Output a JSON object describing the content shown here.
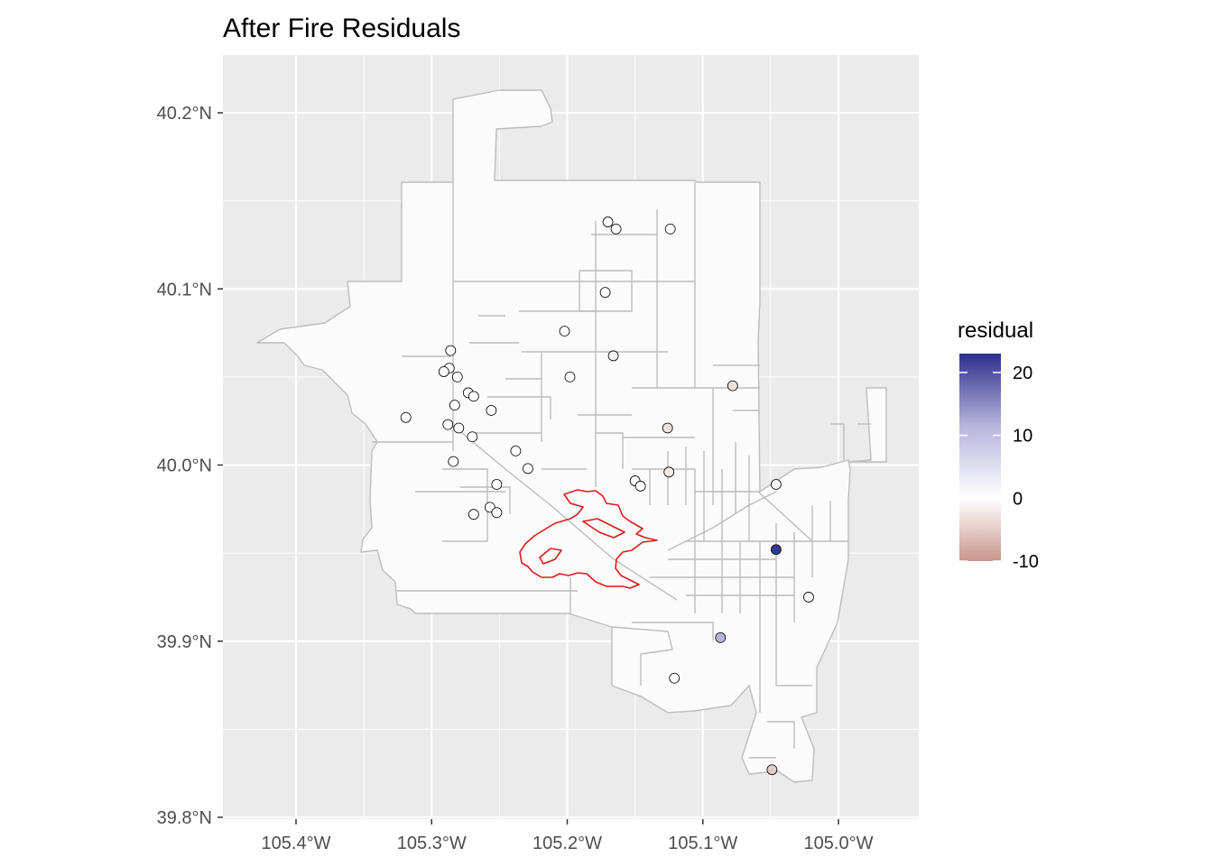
{
  "chart_data": {
    "type": "scatter",
    "title": "After Fire Residuals",
    "xlabel": "",
    "ylabel": "",
    "xlim": [
      -105.45,
      -104.94
    ],
    "ylim": [
      39.8,
      40.23
    ],
    "x_ticks": [
      {
        "value": -105.4,
        "label": "105.4°W"
      },
      {
        "value": -105.3,
        "label": "105.3°W"
      },
      {
        "value": -105.2,
        "label": "105.2°W"
      },
      {
        "value": -105.1,
        "label": "105.1°W"
      },
      {
        "value": -105.0,
        "label": "105.0°W"
      }
    ],
    "y_ticks": [
      {
        "value": 39.8,
        "label": "39.8°N"
      },
      {
        "value": 39.9,
        "label": "39.9°N"
      },
      {
        "value": 40.0,
        "label": "40.0°N"
      },
      {
        "value": 40.1,
        "label": "40.1°N"
      },
      {
        "value": 40.2,
        "label": "40.2°N"
      }
    ],
    "grid": true,
    "legend": {
      "title": "residual",
      "placement": "right",
      "range": [
        -10,
        23
      ],
      "ticks": [
        {
          "value": 20,
          "label": "20"
        },
        {
          "value": 10,
          "label": "10"
        },
        {
          "value": 0,
          "label": "0"
        },
        {
          "value": -10,
          "label": "-10"
        }
      ],
      "colors": {
        "low": "#c9958b",
        "mid": "#ffffff",
        "high": "#2d2f8c"
      }
    },
    "colors": {
      "panel_bg": "#ebebeb",
      "grid": "#ffffff",
      "region_fill": "#fbfbfb",
      "region_stroke": "#bdbdbd",
      "fire_perimeter": "#e0191a"
    },
    "points": [
      {
        "lon": -105.17,
        "lat": 40.138,
        "residual": 0
      },
      {
        "lon": -105.164,
        "lat": 40.134,
        "residual": 0
      },
      {
        "lon": -105.124,
        "lat": 40.134,
        "residual": 0
      },
      {
        "lon": -105.172,
        "lat": 40.098,
        "residual": 0
      },
      {
        "lon": -105.202,
        "lat": 40.076,
        "residual": 0
      },
      {
        "lon": -105.166,
        "lat": 40.062,
        "residual": -1
      },
      {
        "lon": -105.198,
        "lat": 40.05,
        "residual": 0
      },
      {
        "lon": -105.078,
        "lat": 40.045,
        "residual": -3
      },
      {
        "lon": -105.286,
        "lat": 40.065,
        "residual": 0
      },
      {
        "lon": -105.287,
        "lat": 40.055,
        "residual": 0
      },
      {
        "lon": -105.291,
        "lat": 40.053,
        "residual": 0
      },
      {
        "lon": -105.281,
        "lat": 40.05,
        "residual": 0
      },
      {
        "lon": -105.273,
        "lat": 40.041,
        "residual": 0
      },
      {
        "lon": -105.269,
        "lat": 40.039,
        "residual": 0
      },
      {
        "lon": -105.283,
        "lat": 40.034,
        "residual": 0
      },
      {
        "lon": -105.256,
        "lat": 40.031,
        "residual": 0
      },
      {
        "lon": -105.319,
        "lat": 40.027,
        "residual": 0
      },
      {
        "lon": -105.288,
        "lat": 40.023,
        "residual": 0
      },
      {
        "lon": -105.28,
        "lat": 40.021,
        "residual": 0
      },
      {
        "lon": -105.27,
        "lat": 40.016,
        "residual": 0
      },
      {
        "lon": -105.126,
        "lat": 40.021,
        "residual": -3
      },
      {
        "lon": -105.238,
        "lat": 40.008,
        "residual": 0
      },
      {
        "lon": -105.284,
        "lat": 40.002,
        "residual": 0
      },
      {
        "lon": -105.229,
        "lat": 39.998,
        "residual": 0
      },
      {
        "lon": -105.125,
        "lat": 39.996,
        "residual": -2
      },
      {
        "lon": -105.252,
        "lat": 39.989,
        "residual": 0
      },
      {
        "lon": -105.15,
        "lat": 39.991,
        "residual": 0
      },
      {
        "lon": -105.146,
        "lat": 39.988,
        "residual": 0
      },
      {
        "lon": -105.046,
        "lat": 39.989,
        "residual": 1
      },
      {
        "lon": -105.257,
        "lat": 39.976,
        "residual": 0
      },
      {
        "lon": -105.252,
        "lat": 39.973,
        "residual": 0
      },
      {
        "lon": -105.269,
        "lat": 39.972,
        "residual": 0
      },
      {
        "lon": -105.046,
        "lat": 39.952,
        "residual": 22
      },
      {
        "lon": -105.022,
        "lat": 39.925,
        "residual": 1
      },
      {
        "lon": -105.087,
        "lat": 39.902,
        "residual": 8
      },
      {
        "lon": -105.121,
        "lat": 39.879,
        "residual": 0
      },
      {
        "lon": -105.049,
        "lat": 39.827,
        "residual": -5
      }
    ]
  }
}
